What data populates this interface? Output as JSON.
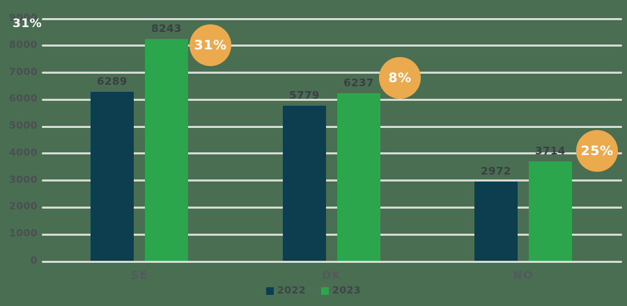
{
  "colors": {
    "background": "#4a6e51",
    "series_2022": "#0c3e4f",
    "series_2023": "#2ba64d",
    "badge_fill": "#ebaa4e",
    "badge_text": "#ffffff",
    "gridline": "#d6d9d4",
    "tick_text": "#4a4f53",
    "value_text": "#3a3f45",
    "category_text": "#55595d",
    "legend_text": "#3f444a",
    "overlay_text": "#ffffff"
  },
  "overlay": {
    "percent_label": "31%"
  },
  "chart_data": {
    "type": "bar",
    "title": "",
    "xlabel": "",
    "ylabel": "",
    "categories": [
      "SE",
      "DK",
      "NO"
    ],
    "series": [
      {
        "name": "2022",
        "color": "#0c3e4f",
        "values": [
          6289,
          5779,
          2972
        ]
      },
      {
        "name": "2023",
        "color": "#2ba64d",
        "values": [
          8243,
          6237,
          3714
        ]
      }
    ],
    "growth_badges": [
      "31%",
      "8%",
      "25%"
    ],
    "ylim": [
      0,
      9000
    ],
    "ytick_step": 1000,
    "ytick_labels": [
      "0",
      "1000",
      "2000",
      "3000",
      "4000",
      "5000",
      "6000",
      "7000",
      "8000",
      "9000"
    ],
    "grid": true,
    "legend_position": "bottom-center"
  }
}
